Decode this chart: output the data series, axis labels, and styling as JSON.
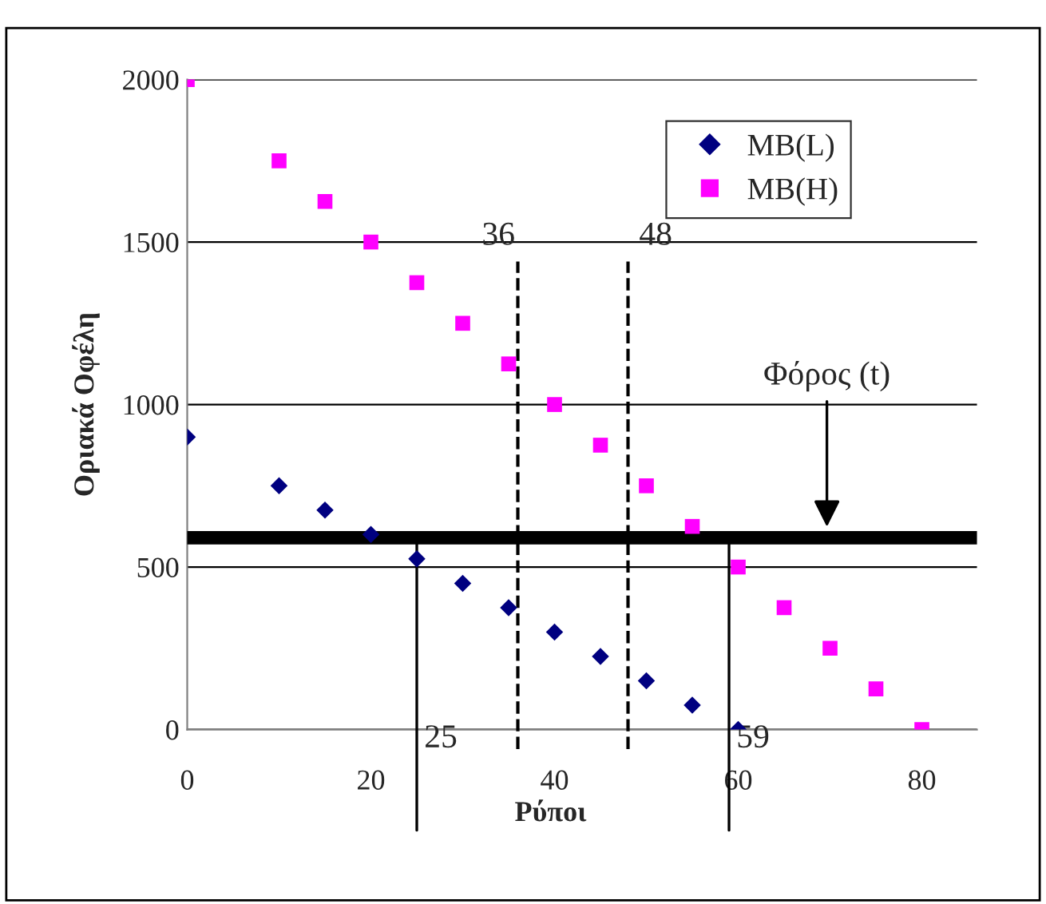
{
  "chart_data": {
    "type": "scatter",
    "ylabel": "Οριακά Οφέλη",
    "xlabel": "Ρύποι",
    "xlim": [
      0,
      86
    ],
    "ylim": [
      0,
      2000
    ],
    "xticks": [
      0,
      20,
      40,
      60,
      80
    ],
    "yticks": [
      0,
      500,
      1000,
      1500,
      2000
    ],
    "grid": "y",
    "legend": "top right",
    "series": [
      {
        "name": "MB(L)",
        "color": "#000080",
        "marker": "diamond",
        "x": [
          0,
          10,
          15,
          20,
          25,
          30,
          35,
          40,
          45,
          50,
          55,
          60
        ],
        "values": [
          900,
          750,
          675,
          600,
          525,
          450,
          375,
          300,
          225,
          150,
          75,
          0
        ]
      },
      {
        "name": "MB(H)",
        "color": "#ff00ff",
        "marker": "square",
        "x": [
          0,
          10,
          15,
          20,
          25,
          30,
          35,
          40,
          45,
          50,
          55,
          60,
          65,
          70,
          75,
          80
        ],
        "values": [
          2000,
          1750,
          1625,
          1500,
          1375,
          1250,
          1125,
          1000,
          875,
          750,
          625,
          500,
          375,
          250,
          125,
          0
        ]
      }
    ],
    "ref_lines": [
      {
        "axis": "y",
        "value": 590,
        "label": null,
        "color": "#000000",
        "line_style": "solid"
      },
      {
        "axis": "x",
        "value": 25,
        "label": "25",
        "color": "#000000",
        "line_style": "solid"
      },
      {
        "axis": "x",
        "value": 36,
        "label": "36",
        "color": "#000000",
        "line_style": "dashed"
      },
      {
        "axis": "x",
        "value": 48,
        "label": "48",
        "color": "#000000",
        "line_style": "dashed"
      },
      {
        "axis": "x",
        "value": 59,
        "label": "59",
        "color": "#000000",
        "line_style": "solid"
      }
    ],
    "annotations": [
      "Φόρος (t)"
    ]
  }
}
